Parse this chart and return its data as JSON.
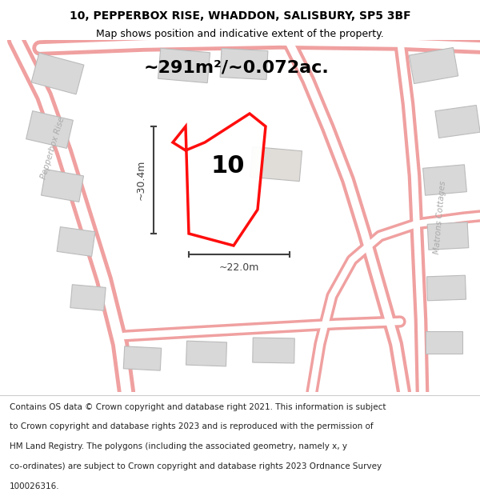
{
  "title_line1": "10, PEPPERBOX RISE, WHADDON, SALISBURY, SP5 3BF",
  "title_line2": "Map shows position and indicative extent of the property.",
  "area_text": "~291m²/~0.072ac.",
  "label_number": "10",
  "dim_height": "~30.4m",
  "dim_width": "~22.0m",
  "footer_lines": [
    "Contains OS data © Crown copyright and database right 2021. This information is subject",
    "to Crown copyright and database rights 2023 and is reproduced with the permission of",
    "HM Land Registry. The polygons (including the associated geometry, namely x, y",
    "co-ordinates) are subject to Crown copyright and database rights 2023 Ordnance Survey",
    "100026316."
  ],
  "bg_color": "#f0ece8",
  "road_color_light": "#f0a0a0",
  "building_fill": "#d8d8d8",
  "building_edge": "#bbbbbb",
  "plot_fill": "#ffffff",
  "plot_edge": "#ff0000",
  "plot_lw": 2.5,
  "street_label_color": "#aaaaaa",
  "dim_color": "#404040",
  "title_fontsize": 10,
  "subtitle_fontsize": 9,
  "area_fontsize": 16,
  "number_fontsize": 22,
  "dim_fontsize": 9,
  "footer_fontsize": 7.5
}
